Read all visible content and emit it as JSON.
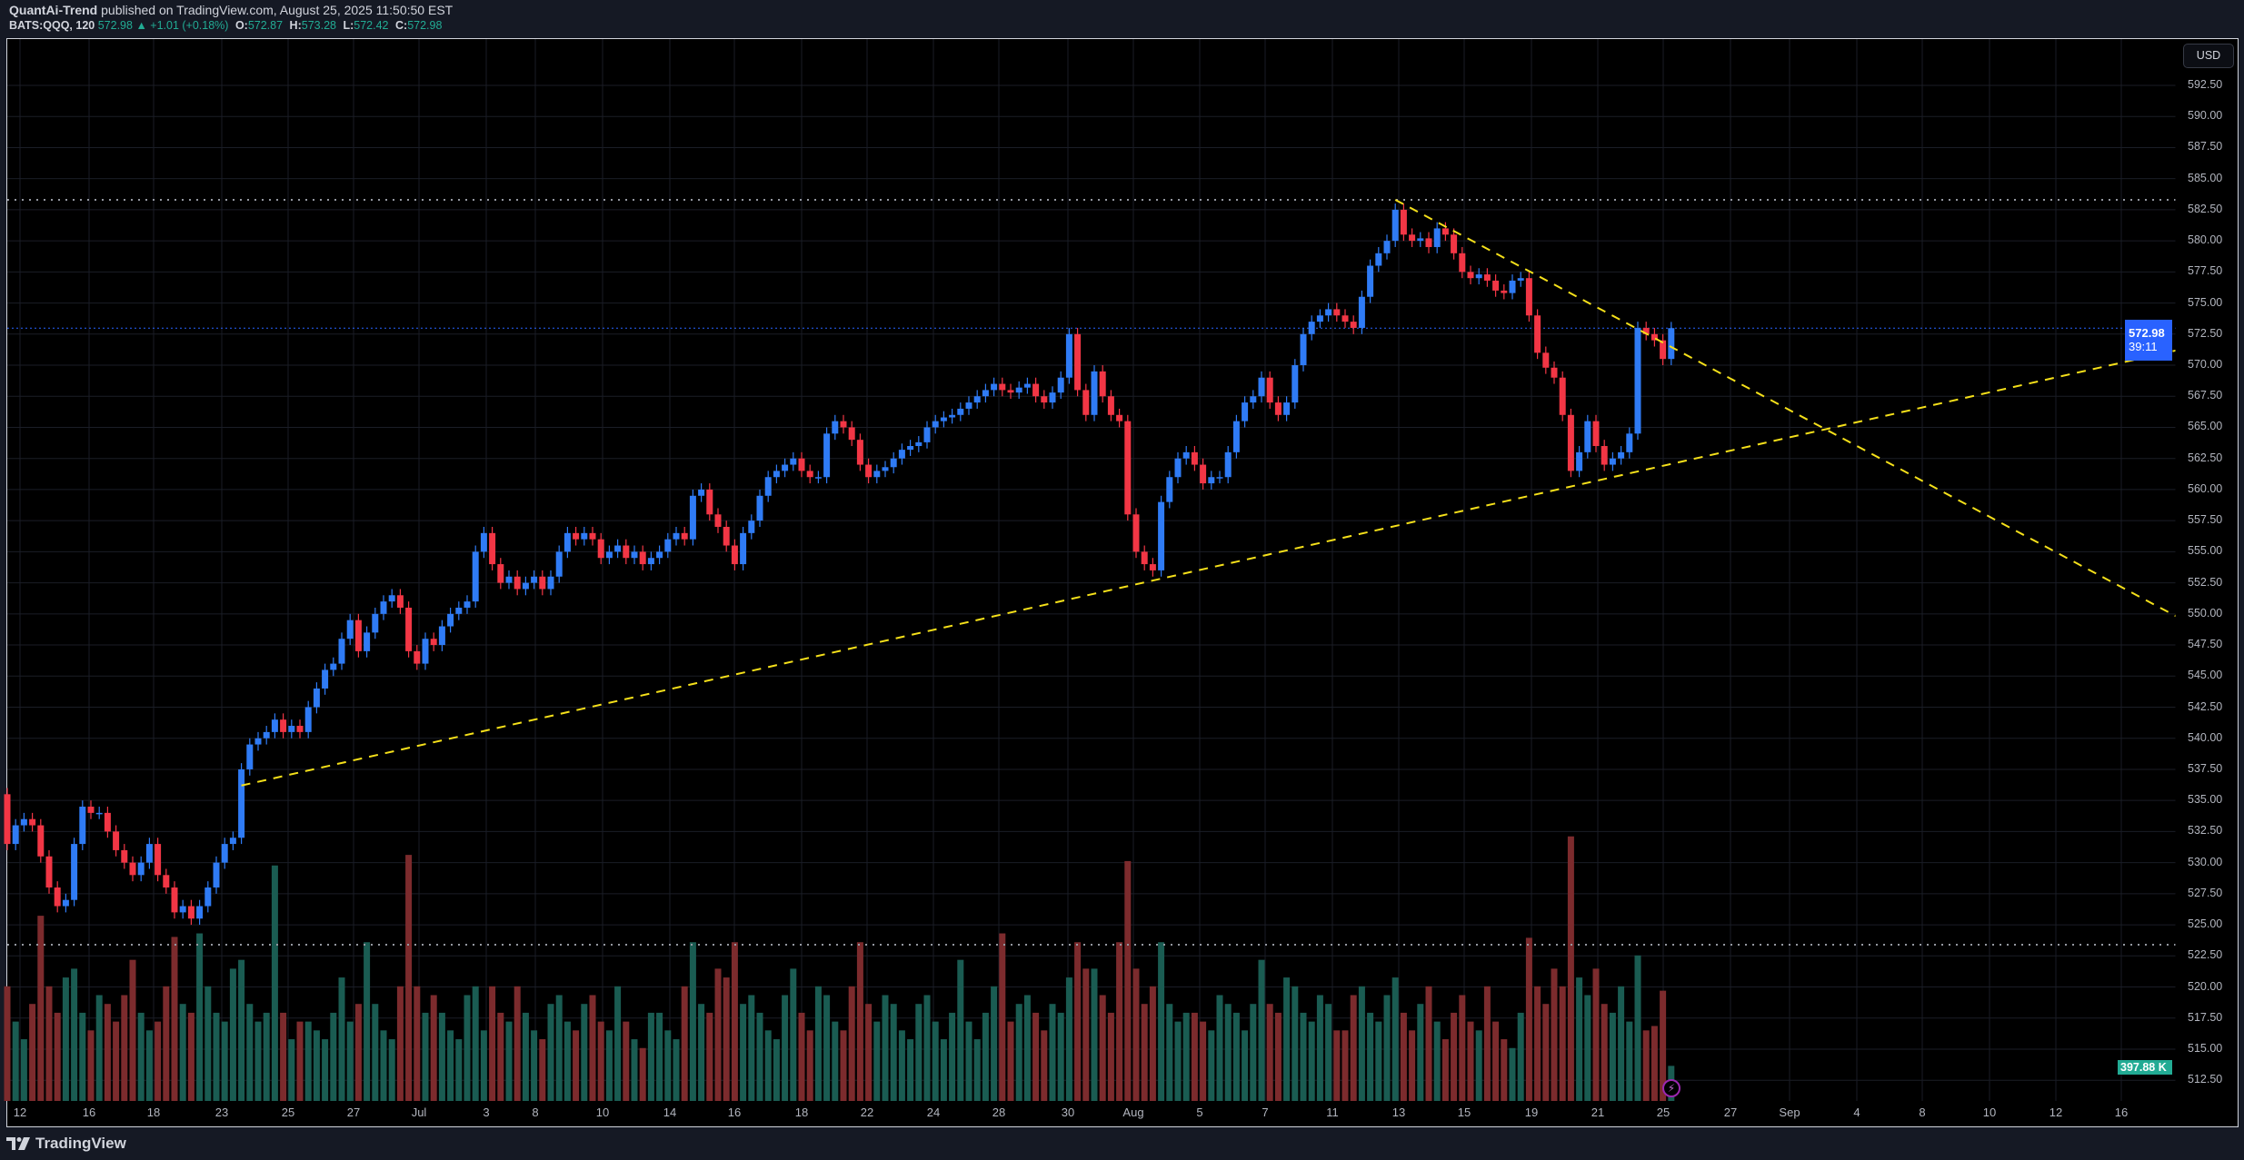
{
  "header": {
    "author": "QuantAi-Trend",
    "published": "published on TradingView.com, August 25, 2025 11:50:50 EST",
    "symbol": "BATS:QQQ, 120",
    "last": "572.98",
    "change": "▲ +1.01 (+0.18%)",
    "o_label": "O:",
    "o": "572.87",
    "h_label": "H:",
    "h": "573.28",
    "l_label": "L:",
    "l": "572.42",
    "c_label": "C:",
    "c": "572.98"
  },
  "price_axis": {
    "currency": "USD",
    "ticks": [
      "592.50",
      "590.00",
      "587.50",
      "585.00",
      "582.50",
      "580.00",
      "577.50",
      "575.00",
      "572.50",
      "570.00",
      "567.50",
      "565.00",
      "562.50",
      "560.00",
      "557.50",
      "555.00",
      "552.50",
      "550.00",
      "547.50",
      "545.00",
      "542.50",
      "540.00",
      "537.50",
      "535.00",
      "532.50",
      "530.00",
      "527.50",
      "525.00",
      "522.50",
      "520.00",
      "517.50",
      "515.00",
      "512.50"
    ],
    "last_price": "572.98",
    "countdown": "39:11",
    "volume_label": "397.88 K"
  },
  "time_axis": [
    "12",
    "16",
    "18",
    "23",
    "25",
    "27",
    "Jul",
    "3",
    "8",
    "10",
    "14",
    "16",
    "18",
    "22",
    "24",
    "28",
    "30",
    "Aug",
    "5",
    "7",
    "11",
    "13",
    "15",
    "19",
    "21",
    "25",
    "27",
    "Sep",
    "4",
    "8",
    "10",
    "12",
    "16"
  ],
  "branding": "TradingView",
  "colors": {
    "up": "#2f7bf5",
    "down": "#f23645",
    "vol_up": "#1a5c52",
    "vol_down": "#7c2b2d",
    "trendline": "#f5e01a",
    "last_price": "#2962ff"
  },
  "chart_data": {
    "type": "candlestick",
    "symbol": "BATS:QQQ",
    "interval": "120",
    "volume_unit": "K",
    "first_open": 535.5,
    "days": [
      [
        "Jun 12",
        [
          531.5,
          533,
          533.5,
          533
        ],
        [
          1300,
          900,
          700,
          1100
        ]
      ],
      [
        "Jun 13",
        [
          530.5,
          528,
          526.5,
          527
        ],
        [
          2100,
          1300,
          1000,
          1400
        ]
      ],
      [
        "Jun 16",
        [
          531.5,
          534.5,
          534,
          534
        ],
        [
          1500,
          1000,
          800,
          1200
        ]
      ],
      [
        "Jun 17",
        [
          532.5,
          531,
          530,
          529
        ],
        [
          1100,
          900,
          1200,
          1600
        ]
      ],
      [
        "Jun 18",
        [
          530,
          531.5,
          529,
          528
        ],
        [
          1000,
          800,
          900,
          1300
        ]
      ],
      [
        "Jun 20",
        [
          526,
          526.5,
          525.5,
          526.5
        ],
        [
          1860,
          1100,
          1000,
          1900
        ]
      ],
      [
        "Jun 23",
        [
          528,
          530,
          531.5,
          532
        ],
        [
          1300,
          1000,
          900,
          1500
        ]
      ],
      [
        "Jun 24",
        [
          537.5,
          539.5,
          540,
          540.5
        ],
        [
          1600,
          1100,
          900,
          1000
        ]
      ],
      [
        "Jun 25",
        [
          541.5,
          540.5,
          541,
          540.5
        ],
        [
          2670,
          1000,
          700,
          900
        ]
      ],
      [
        "Jun 26",
        [
          542.5,
          544,
          545.5,
          546
        ],
        [
          900,
          800,
          700,
          1000
        ]
      ],
      [
        "Jun 27",
        [
          548,
          549.5,
          547,
          548.5
        ],
        [
          1400,
          900,
          1100,
          1800
        ]
      ],
      [
        "Jun 30",
        [
          550,
          551,
          551.5,
          550.5
        ],
        [
          1100,
          800,
          700,
          1300
        ]
      ],
      [
        "Jul 1",
        [
          547,
          546,
          548,
          547.5
        ],
        [
          2790,
          1300,
          1000,
          1200
        ]
      ],
      [
        "Jul 2",
        [
          549,
          550,
          550.5,
          551
        ],
        [
          1000,
          800,
          700,
          1200
        ]
      ],
      [
        "Jul 3",
        [
          555,
          556.5
        ],
        [
          1300,
          800
        ]
      ],
      [
        "Jul 7",
        [
          554,
          552.5,
          553,
          552
        ],
        [
          1300,
          1000,
          900,
          1300
        ]
      ],
      [
        "Jul 8",
        [
          552.5,
          553,
          552,
          553
        ],
        [
          1000,
          800,
          700,
          1100
        ]
      ],
      [
        "Jul 9",
        [
          555,
          556.5,
          556,
          556.5
        ],
        [
          1200,
          900,
          800,
          1100
        ]
      ],
      [
        "Jul 10",
        [
          556,
          554.5,
          555,
          555.5
        ],
        [
          1200,
          900,
          800,
          1300
        ]
      ],
      [
        "Jul 11",
        [
          554.5,
          555,
          554,
          554.5
        ],
        [
          900,
          700,
          600,
          1000
        ]
      ],
      [
        "Jul 14",
        [
          555,
          556,
          556.5,
          556
        ],
        [
          1000,
          800,
          700,
          1300
        ]
      ],
      [
        "Jul 15",
        [
          559.5,
          560,
          558,
          557
        ],
        [
          1800,
          1100,
          1000,
          1500
        ]
      ],
      [
        "Jul 16",
        [
          555.5,
          554,
          556.5,
          557.5
        ],
        [
          1400,
          1800,
          1100,
          1200
        ]
      ],
      [
        "Jul 17",
        [
          559.5,
          561,
          561.5,
          562
        ],
        [
          1000,
          800,
          700,
          1200
        ]
      ],
      [
        "Jul 18",
        [
          562.5,
          561.5,
          561,
          561
        ],
        [
          1500,
          1000,
          800,
          1300
        ]
      ],
      [
        "Jul 21",
        [
          564.5,
          565.5,
          565,
          564
        ],
        [
          1200,
          900,
          800,
          1300
        ]
      ],
      [
        "Jul 22",
        [
          562,
          561,
          561.5,
          561.8
        ],
        [
          1800,
          1100,
          900,
          1200
        ]
      ],
      [
        "Jul 23",
        [
          562.5,
          563.2,
          563.5,
          563.8
        ],
        [
          1100,
          800,
          700,
          1100
        ]
      ],
      [
        "Jul 24",
        [
          565,
          565.5,
          565.8,
          566
        ],
        [
          1200,
          900,
          700,
          1000
        ]
      ],
      [
        "Jul 25",
        [
          566.5,
          567,
          567.5,
          568
        ],
        [
          1600,
          900,
          700,
          1000
        ]
      ],
      [
        "Jul 28",
        [
          568.5,
          568,
          567.8,
          568.2
        ],
        [
          1300,
          1900,
          900,
          1100
        ]
      ],
      [
        "Jul 29",
        [
          568.5,
          567.5,
          567,
          567.8
        ],
        [
          1200,
          1000,
          800,
          1100
        ]
      ],
      [
        "Jul 30",
        [
          569,
          572.5,
          568,
          566
        ],
        [
          1000,
          1400,
          1800,
          1500
        ]
      ],
      [
        "Jul 31",
        [
          569.5,
          567.5,
          566,
          565.5
        ],
        [
          1500,
          1200,
          1000,
          1800
        ]
      ],
      [
        "Aug 1",
        [
          558,
          555,
          554,
          553.5
        ],
        [
          2720,
          1500,
          1100,
          1300
        ]
      ],
      [
        "Aug 4",
        [
          559,
          561,
          562.5,
          563
        ],
        [
          1800,
          1100,
          900,
          1000
        ]
      ],
      [
        "Aug 5",
        [
          562,
          560.5,
          561,
          561
        ],
        [
          1000,
          900,
          800,
          1200
        ]
      ],
      [
        "Aug 6",
        [
          563,
          565.5,
          567,
          567.5
        ],
        [
          1100,
          1000,
          800,
          1100
        ]
      ],
      [
        "Aug 7",
        [
          569,
          567,
          566,
          567
        ],
        [
          1600,
          1100,
          1000,
          1400
        ]
      ],
      [
        "Aug 8",
        [
          570,
          572.5,
          573.5,
          574
        ],
        [
          1300,
          1000,
          900,
          1200
        ]
      ],
      [
        "Aug 11",
        [
          574.5,
          574,
          573.5,
          573
        ],
        [
          1100,
          800,
          800,
          1200
        ]
      ],
      [
        "Aug 12",
        [
          575.5,
          578,
          579,
          580
        ],
        [
          1300,
          1000,
          900,
          1200
        ]
      ],
      [
        "Aug 13",
        [
          582.5,
          580.5,
          580,
          580.2
        ],
        [
          1400,
          1000,
          800,
          1100
        ]
      ],
      [
        "Aug 14",
        [
          579.5,
          581,
          580.5,
          579
        ],
        [
          1300,
          900,
          700,
          1000
        ]
      ],
      [
        "Aug 15",
        [
          577.5,
          577,
          577.3,
          576.8
        ],
        [
          1200,
          900,
          800,
          1300
        ]
      ],
      [
        "Aug 18",
        [
          576,
          575.8,
          576.8,
          577
        ],
        [
          900,
          700,
          600,
          1000
        ]
      ],
      [
        "Aug 19",
        [
          574,
          571,
          569.8,
          569
        ],
        [
          1850,
          1300,
          1100,
          1500
        ]
      ],
      [
        "Aug 20",
        [
          566,
          561.5,
          563,
          565.5
        ],
        [
          1300,
          3000,
          1400,
          1200
        ]
      ],
      [
        "Aug 21",
        [
          563.5,
          562,
          562.5,
          563
        ],
        [
          1500,
          1100,
          1000,
          1300
        ]
      ],
      [
        "Aug 22",
        [
          564.5,
          573,
          572.5,
          572
        ],
        [
          900,
          1650,
          800,
          850
        ]
      ],
      [
        "Aug 25",
        [
          570.5,
          572.98
        ],
        [
          1250,
          397.88
        ]
      ]
    ],
    "horizontal_levels": [
      583.3,
      523.4
    ],
    "trendlines": [
      {
        "from": {
          "day": "Jun 24",
          "bar": 0,
          "price": 536.2
        },
        "to": {
          "day": "Aug 21",
          "bar": 2,
          "price": 561.0
        },
        "style": "dashed",
        "extend": "right"
      },
      {
        "from": {
          "day": "Aug 13",
          "bar": 0,
          "price": 583.3
        },
        "to": {
          "day": "Aug 22",
          "bar": 1,
          "price": 572.9
        },
        "style": "dashed",
        "extend": "right"
      }
    ],
    "ylim": [
      511,
      594
    ]
  }
}
